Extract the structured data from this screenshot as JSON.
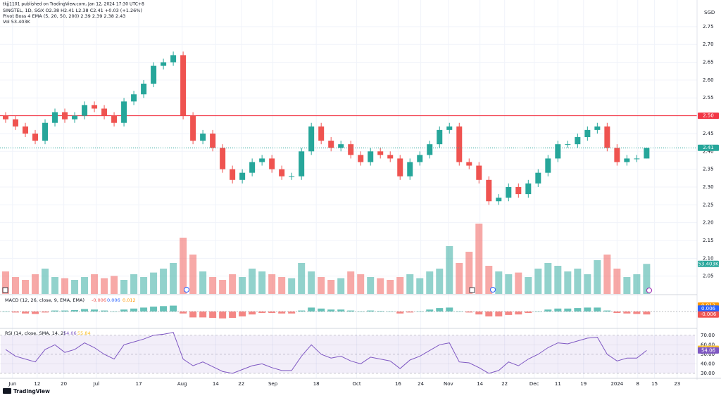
{
  "header": {
    "publisher": "tkjj1101 published on TradingView.com, Jan 12, 2024 17:30 UTC+8",
    "symbol": "SINGTEL, 1D, SGX  O2.38 H2.41 L2.38 C2.41 +0.03 (+1.26%)",
    "ema": "Pivot Boss 4 EMA (5, 20, 50, 200)  2.39  2.39  2.38  2.43",
    "vol": "Vol  53.403K"
  },
  "footer": "TradingView",
  "chart_data": [
    {
      "type": "candlestick",
      "currency": "SGD",
      "up_color": "#26a69a",
      "down_color": "#ef5350",
      "open": [
        2.5,
        2.49,
        2.47,
        2.45,
        2.43,
        2.48,
        2.51,
        2.49,
        2.5,
        2.53,
        2.52,
        2.5,
        2.48,
        2.54,
        2.56,
        2.59,
        2.64,
        2.65,
        2.67,
        2.5,
        2.43,
        2.45,
        2.41,
        2.35,
        2.32,
        2.34,
        2.37,
        2.38,
        2.35,
        2.33,
        2.33,
        2.4,
        2.47,
        2.43,
        2.41,
        2.42,
        2.39,
        2.37,
        2.4,
        2.39,
        2.38,
        2.33,
        2.37,
        2.39,
        2.42,
        2.46,
        2.47,
        2.37,
        2.36,
        2.32,
        2.26,
        2.27,
        2.3,
        2.28,
        2.31,
        2.34,
        2.38,
        2.42,
        2.42,
        2.44,
        2.46,
        2.47,
        2.41,
        2.37,
        2.38,
        2.38
      ],
      "high": [
        2.51,
        2.5,
        2.48,
        2.46,
        2.49,
        2.52,
        2.52,
        2.51,
        2.54,
        2.54,
        2.53,
        2.51,
        2.55,
        2.57,
        2.6,
        2.65,
        2.66,
        2.68,
        2.68,
        2.51,
        2.46,
        2.46,
        2.42,
        2.36,
        2.35,
        2.38,
        2.39,
        2.39,
        2.36,
        2.34,
        2.41,
        2.48,
        2.48,
        2.44,
        2.43,
        2.43,
        2.4,
        2.41,
        2.41,
        2.4,
        2.39,
        2.38,
        2.4,
        2.43,
        2.47,
        2.48,
        2.48,
        2.38,
        2.37,
        2.33,
        2.28,
        2.31,
        2.31,
        2.32,
        2.35,
        2.39,
        2.43,
        2.43,
        2.45,
        2.47,
        2.48,
        2.48,
        2.42,
        2.39,
        2.39,
        2.41
      ],
      "low": [
        2.48,
        2.46,
        2.44,
        2.42,
        2.42,
        2.47,
        2.48,
        2.48,
        2.49,
        2.51,
        2.49,
        2.47,
        2.47,
        2.53,
        2.55,
        2.58,
        2.63,
        2.64,
        2.49,
        2.42,
        2.42,
        2.4,
        2.34,
        2.31,
        2.31,
        2.33,
        2.36,
        2.34,
        2.32,
        2.32,
        2.32,
        2.39,
        2.42,
        2.4,
        2.4,
        2.38,
        2.36,
        2.36,
        2.38,
        2.37,
        2.32,
        2.32,
        2.36,
        2.38,
        2.41,
        2.45,
        2.36,
        2.35,
        2.31,
        2.25,
        2.25,
        2.26,
        2.27,
        2.27,
        2.3,
        2.33,
        2.37,
        2.41,
        2.41,
        2.43,
        2.45,
        2.4,
        2.36,
        2.36,
        2.37,
        2.38
      ],
      "close": [
        2.49,
        2.47,
        2.45,
        2.43,
        2.48,
        2.51,
        2.49,
        2.5,
        2.53,
        2.52,
        2.5,
        2.48,
        2.54,
        2.56,
        2.59,
        2.64,
        2.65,
        2.67,
        2.5,
        2.43,
        2.45,
        2.41,
        2.35,
        2.32,
        2.34,
        2.37,
        2.38,
        2.35,
        2.33,
        2.33,
        2.4,
        2.47,
        2.43,
        2.41,
        2.42,
        2.39,
        2.37,
        2.4,
        2.39,
        2.38,
        2.33,
        2.37,
        2.39,
        2.42,
        2.46,
        2.47,
        2.37,
        2.36,
        2.32,
        2.26,
        2.27,
        2.3,
        2.28,
        2.31,
        2.34,
        2.38,
        2.42,
        2.42,
        2.44,
        2.46,
        2.47,
        2.41,
        2.37,
        2.38,
        2.38,
        2.41
      ],
      "xlim": [
        -0.5,
        69.9
      ],
      "xticks": [
        {
          "value": 0.7,
          "label": "Jun"
        },
        {
          "value": 3.2,
          "label": "12"
        },
        {
          "value": 5.9,
          "label": "20"
        },
        {
          "value": 9.2,
          "label": "Jul"
        },
        {
          "value": 13.5,
          "label": "17"
        },
        {
          "value": 17.9,
          "label": "Aug"
        },
        {
          "value": 21.3,
          "label": "14"
        },
        {
          "value": 23.9,
          "label": "22"
        },
        {
          "value": 27.1,
          "label": "Sep"
        },
        {
          "value": 31.5,
          "label": "18"
        },
        {
          "value": 35.6,
          "label": "Oct"
        },
        {
          "value": 39.8,
          "label": "16"
        },
        {
          "value": 42.1,
          "label": "24"
        },
        {
          "value": 44.9,
          "label": "Nov"
        },
        {
          "value": 48.1,
          "label": "14"
        },
        {
          "value": 50.6,
          "label": "22"
        },
        {
          "value": 53.6,
          "label": "Dec"
        },
        {
          "value": 56,
          "label": "11"
        },
        {
          "value": 58.6,
          "label": "19"
        },
        {
          "value": 62,
          "label": "2024"
        },
        {
          "value": 64.1,
          "label": "8"
        },
        {
          "value": 65.8,
          "label": "15"
        },
        {
          "value": 68.1,
          "label": "23"
        }
      ],
      "ylim": [
        2.0,
        2.805
      ],
      "yticks": [
        2.75,
        {
          "value": 2.7,
          "label": "2.70"
        },
        2.65,
        {
          "value": 2.6,
          "label": "2.60"
        },
        2.55,
        {
          "value": 2.5,
          "label": "2.50"
        },
        2.45,
        {
          "value": 2.4,
          "label": "2.40"
        },
        2.35,
        {
          "value": 2.3,
          "label": "2.30"
        },
        2.25,
        {
          "value": 2.2,
          "label": "2.20"
        },
        2.15,
        {
          "value": 2.1,
          "label": "2.10"
        },
        2.05
      ],
      "hline": {
        "value": 2.5,
        "label": "2.50",
        "color": "#f23645"
      }
    },
    {
      "type": "bar",
      "name": "Vol",
      "ylim": [
        0,
        510
      ],
      "current_label": "53.403K",
      "values": [
        40,
        30,
        25,
        35,
        45,
        30,
        28,
        25,
        30,
        35,
        28,
        32,
        25,
        35,
        30,
        38,
        45,
        55,
        100,
        70,
        40,
        30,
        25,
        35,
        30,
        45,
        40,
        35,
        30,
        28,
        55,
        40,
        30,
        25,
        28,
        40,
        35,
        30,
        28,
        25,
        30,
        35,
        28,
        40,
        45,
        85,
        55,
        75,
        125,
        50,
        40,
        35,
        38,
        30,
        45,
        55,
        50,
        40,
        45,
        35,
        60,
        70,
        45,
        30,
        35,
        53.403
      ]
    },
    {
      "type": "macd",
      "title": "MACD (12, 26, close, 9, EMA, EMA)",
      "ylim": [
        -0.03,
        0.03
      ],
      "histogram": -0.006,
      "macd": 0.006,
      "signal": 0.012,
      "values": [
        0,
        -0.002,
        -0.004,
        -0.005,
        -0.002,
        0.002,
        0.002,
        0.003,
        0.005,
        0.004,
        0.002,
        0,
        0.004,
        0.006,
        0.008,
        0.01,
        0.011,
        0.012,
        -0.004,
        -0.012,
        -0.012,
        -0.013,
        -0.014,
        -0.013,
        -0.01,
        -0.006,
        -0.003,
        -0.003,
        -0.004,
        -0.004,
        0.002,
        0.008,
        0.006,
        0.004,
        0.004,
        0.002,
        0,
        0.002,
        0.001,
        0,
        -0.004,
        -0.002,
        0,
        0.004,
        0.007,
        0.008,
        0,
        -0.002,
        -0.006,
        -0.01,
        -0.01,
        -0.007,
        -0.006,
        -0.003,
        0,
        0.004,
        0.006,
        0.006,
        0.007,
        0.008,
        0.008,
        0.002,
        -0.003,
        -0.004,
        -0.005,
        -0.006
      ]
    },
    {
      "type": "line",
      "title": "RSI (14, close, SMA, 14, 2)",
      "color": "#7e57c2",
      "sma": 55.84,
      "ylim": [
        27,
        75
      ],
      "yticks": [
        {
          "value": 70,
          "label": "70.00"
        },
        {
          "value": 60,
          "label": "60.00"
        },
        {
          "value": 50,
          "label": "50.00"
        },
        {
          "value": 40,
          "label": "40.00"
        },
        {
          "value": 30,
          "label": "30.00"
        }
      ],
      "values": [
        55,
        48,
        45,
        42,
        55,
        60,
        52,
        55,
        62,
        57,
        50,
        45,
        60,
        63,
        66,
        70,
        71,
        73,
        45,
        38,
        42,
        37,
        32,
        30,
        34,
        38,
        40,
        36,
        33,
        33,
        48,
        60,
        50,
        46,
        48,
        43,
        40,
        47,
        45,
        43,
        35,
        44,
        48,
        54,
        60,
        62,
        42,
        41,
        36,
        30,
        33,
        42,
        38,
        45,
        50,
        57,
        62,
        61,
        64,
        67,
        68,
        50,
        43,
        46,
        46,
        54.06
      ]
    }
  ]
}
